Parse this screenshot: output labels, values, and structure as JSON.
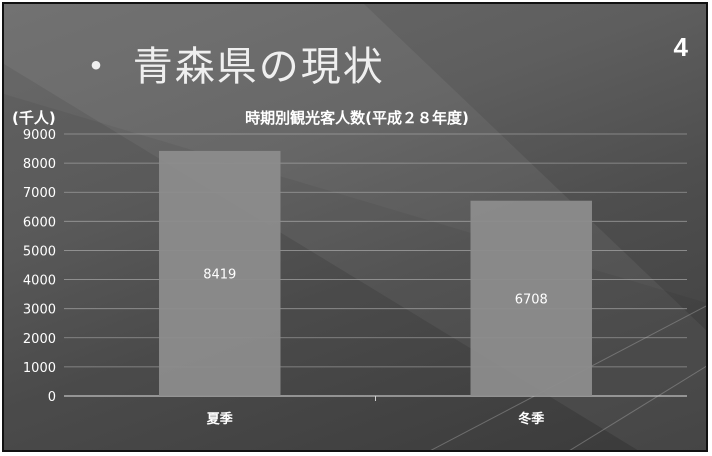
{
  "slide": {
    "title": "・ 青森県の現状",
    "number": "4"
  },
  "chart_data": {
    "type": "bar",
    "title": "時期別観光客人数(平成２８年度)",
    "ylabel": "(千人)",
    "xlabel": "",
    "categories": [
      "夏季",
      "冬季"
    ],
    "values": [
      8419,
      6708
    ],
    "value_labels": [
      "8419",
      "6708"
    ],
    "ylim": [
      0,
      9000
    ],
    "yticks": [
      0,
      1000,
      2000,
      3000,
      4000,
      5000,
      6000,
      7000,
      8000,
      9000
    ],
    "grid": true,
    "legend": "none",
    "bar_color": "#8c8c8c",
    "text_color": "#ffffff"
  }
}
